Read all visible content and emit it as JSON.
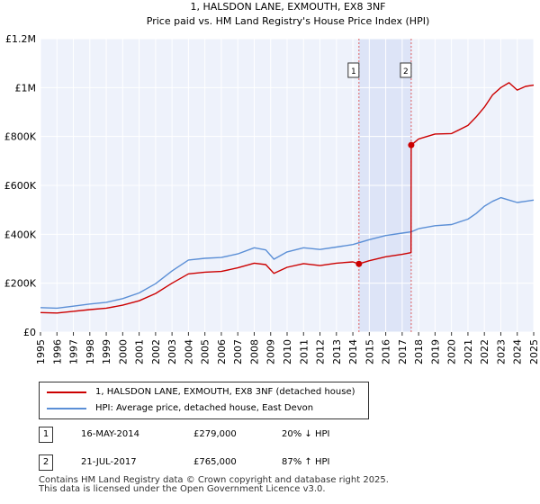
{
  "chart_data": {
    "type": "line",
    "title": "1, HALSDON LANE, EXMOUTH, EX8 3NF",
    "subtitle": "Price paid vs. HM Land Registry's House Price Index (HPI)",
    "xlabel": "",
    "ylabel": "",
    "xlim": [
      1995,
      2025
    ],
    "ylim": [
      0,
      1200000
    ],
    "x_ticks": [
      1995,
      1996,
      1997,
      1998,
      1999,
      2000,
      2001,
      2002,
      2003,
      2004,
      2005,
      2006,
      2007,
      2008,
      2009,
      2010,
      2011,
      2012,
      2013,
      2014,
      2015,
      2016,
      2017,
      2018,
      2019,
      2020,
      2021,
      2022,
      2023,
      2024,
      2025
    ],
    "y_ticks": [
      {
        "value": 0,
        "label": "£0"
      },
      {
        "value": 200000,
        "label": "£200K"
      },
      {
        "value": 400000,
        "label": "£400K"
      },
      {
        "value": 600000,
        "label": "£600K"
      },
      {
        "value": 800000,
        "label": "£800K"
      },
      {
        "value": 1000000,
        "label": "£1M"
      },
      {
        "value": 1200000,
        "label": "£1.2M"
      }
    ],
    "grid": true,
    "shaded_region": {
      "from": 2014.37,
      "to": 2017.55,
      "color": "#dde4f7"
    },
    "series": [
      {
        "name": "1, HALSDON LANE, EXMOUTH, EX8 3NF (detached house)",
        "color": "#cc0000",
        "x": [
          1995,
          1996,
          1997,
          1998,
          1999,
          2000,
          2001,
          2002,
          2003,
          2004,
          2005,
          2006,
          2007,
          2008,
          2008.7,
          2009.2,
          2010,
          2011,
          2012,
          2013,
          2014,
          2014.37,
          2015,
          2016,
          2017,
          2017.54,
          2017.55,
          2018,
          2019,
          2020,
          2021,
          2021.5,
          2022,
          2022.5,
          2023,
          2023.5,
          2024,
          2024.5,
          2025
        ],
        "values": [
          80000,
          78000,
          85000,
          92000,
          98000,
          110000,
          128000,
          158000,
          200000,
          238000,
          245000,
          248000,
          263000,
          282000,
          276000,
          240000,
          265000,
          280000,
          272000,
          282000,
          287000,
          279000,
          292000,
          308000,
          318000,
          325000,
          765000,
          790000,
          810000,
          812000,
          845000,
          880000,
          920000,
          970000,
          1000000,
          1020000,
          990000,
          1005000,
          1010000
        ]
      },
      {
        "name": "HPI: Average price, detached house, East Devon",
        "color": "#5b8fd6",
        "x": [
          1995,
          1996,
          1997,
          1998,
          1999,
          2000,
          2001,
          2002,
          2003,
          2004,
          2005,
          2006,
          2007,
          2008,
          2008.7,
          2009.2,
          2010,
          2011,
          2012,
          2013,
          2014,
          2015,
          2016,
          2017,
          2017.55,
          2018,
          2019,
          2020,
          2021,
          2021.5,
          2022,
          2022.5,
          2023,
          2023.5,
          2024,
          2024.5,
          2025
        ],
        "values": [
          100000,
          98000,
          106000,
          115000,
          122000,
          137000,
          160000,
          198000,
          250000,
          295000,
          302000,
          305000,
          320000,
          345000,
          336000,
          298000,
          328000,
          345000,
          338000,
          348000,
          358000,
          378000,
          395000,
          405000,
          410000,
          423000,
          435000,
          440000,
          462000,
          485000,
          515000,
          535000,
          550000,
          540000,
          530000,
          535000,
          540000
        ]
      }
    ],
    "sales": [
      {
        "label": "1",
        "x": 2014.37,
        "price": 279000,
        "date": "16-MAY-2014",
        "price_text": "£279,000",
        "hpi_text": "20% ↓ HPI"
      },
      {
        "label": "2",
        "x": 2017.55,
        "price": 765000,
        "date": "21-JUL-2017",
        "price_text": "£765,000",
        "hpi_text": "87% ↑ HPI"
      }
    ]
  },
  "legend": {
    "property_label": "1, HALSDON LANE, EXMOUTH, EX8 3NF (detached house)",
    "hpi_label": "HPI: Average price, detached house, East Devon",
    "property_color": "#cc0000",
    "hpi_color": "#5b8fd6"
  },
  "footer": {
    "line1": "Contains HM Land Registry data © Crown copyright and database right 2025.",
    "line2": "This data is licensed under the Open Government Licence v3.0."
  }
}
